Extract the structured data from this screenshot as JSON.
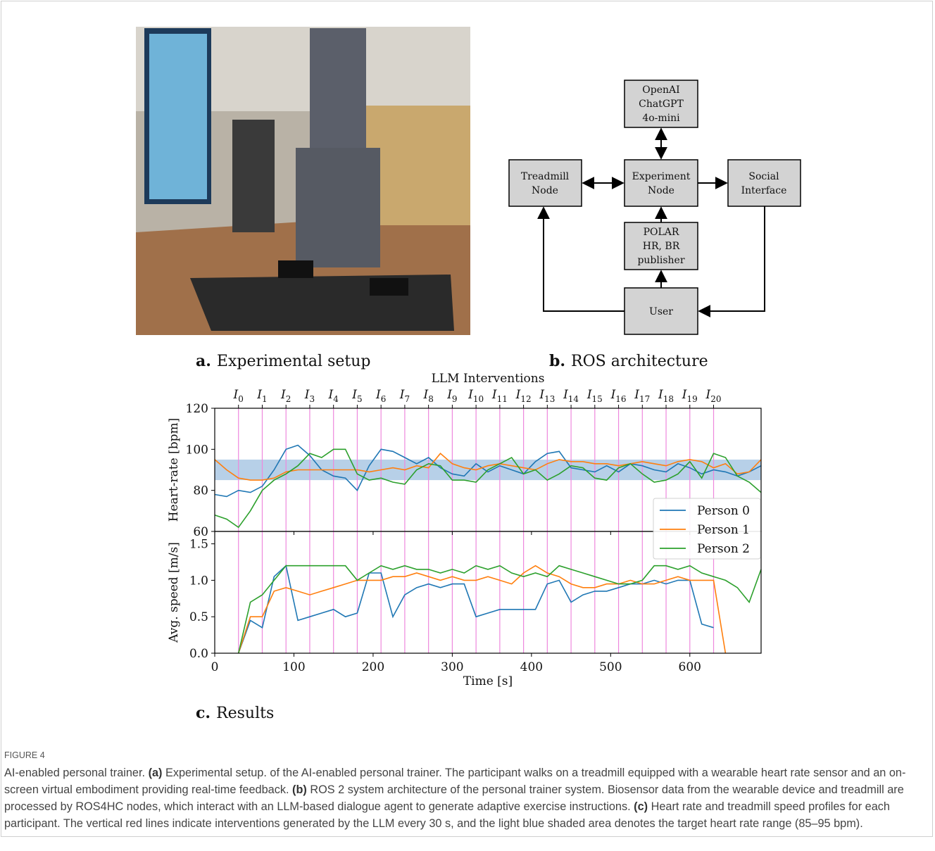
{
  "panels": [
    {
      "letter": "a.",
      "title": "Experimental setup"
    },
    {
      "letter": "b.",
      "title": "ROS architecture"
    },
    {
      "letter": "c.",
      "title": "Results"
    }
  ],
  "diagram": {
    "nodes": [
      {
        "lines": [
          "OpenAI",
          "ChatGPT",
          "4o-mini"
        ]
      },
      {
        "lines": [
          "Treadmill",
          "Node"
        ]
      },
      {
        "lines": [
          "Experiment",
          "Node"
        ]
      },
      {
        "lines": [
          "Social",
          "Interface"
        ]
      },
      {
        "lines": [
          "POLAR",
          "HR, BR",
          "publisher"
        ]
      },
      {
        "lines": [
          "User"
        ]
      }
    ]
  },
  "chart_data": [
    {
      "type": "line",
      "title": "LLM Interventions",
      "y_label": "Heart-rate [bpm]",
      "x": [
        0,
        15,
        30,
        45,
        60,
        75,
        90,
        105,
        120,
        135,
        150,
        165,
        180,
        195,
        210,
        225,
        240,
        255,
        270,
        285,
        300,
        315,
        330,
        345,
        360,
        375,
        390,
        405,
        420,
        435,
        450,
        465,
        480,
        495,
        510,
        525,
        540,
        555,
        570,
        585,
        600,
        615,
        630,
        645,
        660,
        675,
        690
      ],
      "xlim": [
        0,
        690
      ],
      "ylim": [
        60,
        120
      ],
      "yticks": [
        60,
        80,
        100,
        120
      ],
      "target_range": [
        85,
        95
      ],
      "target_color": "#aac8e4",
      "interventions": {
        "x": [
          30,
          60,
          90,
          120,
          150,
          180,
          210,
          240,
          270,
          300,
          330,
          360,
          390,
          420,
          450,
          480,
          510,
          540,
          570,
          600,
          630
        ],
        "labels": [
          "I0",
          "I1",
          "I2",
          "I3",
          "I4",
          "I5",
          "I6",
          "I7",
          "I8",
          "I9",
          "I10",
          "I11",
          "I12",
          "I13",
          "I14",
          "I15",
          "I16",
          "I17",
          "I18",
          "I19",
          "I20"
        ],
        "color": "#ee88dd"
      },
      "legend": "lower right",
      "series": [
        {
          "name": "Person 0",
          "color": "#1f77b4",
          "values": [
            78,
            77,
            80,
            79,
            82,
            90,
            100,
            102,
            97,
            90,
            87,
            86,
            80,
            92,
            100,
            99,
            96,
            93,
            96,
            91,
            88,
            87,
            93,
            89,
            92,
            90,
            88,
            94,
            98,
            99,
            91,
            90,
            89,
            92,
            89,
            93,
            92,
            90,
            89,
            93,
            91,
            88,
            90,
            89,
            87,
            89,
            92
          ]
        },
        {
          "name": "Person 1",
          "color": "#ff7f0e",
          "values": [
            95,
            90,
            86,
            85,
            85,
            86,
            89,
            90,
            90,
            90,
            90,
            90,
            90,
            89,
            90,
            91,
            90,
            92,
            91,
            98,
            93,
            91,
            90,
            92,
            93,
            92,
            91,
            90,
            93,
            95,
            94,
            94,
            93,
            93,
            92,
            93,
            94,
            93,
            92,
            94,
            95,
            94,
            91,
            93,
            88,
            89,
            95
          ]
        },
        {
          "name": "Person 2",
          "color": "#2ca02c",
          "values": [
            68,
            66,
            62,
            70,
            80,
            85,
            88,
            92,
            98,
            96,
            100,
            100,
            88,
            85,
            86,
            84,
            83,
            90,
            93,
            92,
            85,
            85,
            84,
            90,
            93,
            96,
            88,
            90,
            85,
            88,
            92,
            91,
            86,
            85,
            91,
            93,
            88,
            84,
            85,
            88,
            94,
            86,
            98,
            96,
            87,
            84,
            79
          ]
        }
      ]
    },
    {
      "type": "line",
      "y_label": "Avg. speed [m/s]",
      "x_label": "Time [s]",
      "x": [
        0,
        15,
        30,
        45,
        60,
        75,
        90,
        105,
        120,
        135,
        150,
        165,
        180,
        195,
        210,
        225,
        240,
        255,
        270,
        285,
        300,
        315,
        330,
        345,
        360,
        375,
        390,
        405,
        420,
        435,
        450,
        465,
        480,
        495,
        510,
        525,
        540,
        555,
        570,
        585,
        600,
        615,
        630,
        645,
        660,
        675,
        690
      ],
      "xlim": [
        0,
        690
      ],
      "xticks": [
        0,
        100,
        200,
        300,
        400,
        500,
        600
      ],
      "ylim": [
        0,
        1.67
      ],
      "yticks": [
        {
          "value": 0,
          "label": "0.0"
        },
        0.5,
        {
          "value": 1,
          "label": "1.0"
        },
        1.5
      ],
      "series": [
        {
          "name": "Person 0",
          "color": "#1f77b4",
          "values": [
            null,
            null,
            0,
            0.45,
            0.35,
            1.05,
            1.2,
            0.45,
            0.5,
            0.55,
            0.6,
            0.5,
            0.55,
            1.1,
            1.1,
            0.5,
            0.8,
            0.9,
            0.95,
            0.9,
            0.95,
            0.95,
            0.5,
            0.55,
            0.6,
            0.6,
            0.6,
            0.6,
            0.95,
            1.0,
            0.7,
            0.8,
            0.85,
            0.85,
            0.9,
            0.95,
            0.95,
            1.0,
            0.95,
            1.0,
            1.0,
            0.4,
            0.35,
            null,
            null,
            null,
            null
          ]
        },
        {
          "name": "Person 1",
          "color": "#ff7f0e",
          "values": [
            null,
            null,
            0,
            0.5,
            0.5,
            0.85,
            0.9,
            0.85,
            0.8,
            0.85,
            0.9,
            0.95,
            1.0,
            1.0,
            1.0,
            1.05,
            1.05,
            1.1,
            1.05,
            1.0,
            1.05,
            1.0,
            1.0,
            1.05,
            1.0,
            0.95,
            1.1,
            1.2,
            1.1,
            1.05,
            0.95,
            0.9,
            0.9,
            0.95,
            0.95,
            1.0,
            0.95,
            0.95,
            1.0,
            1.05,
            1.0,
            1.0,
            1.0,
            0,
            null,
            null,
            null
          ]
        },
        {
          "name": "Person 2",
          "color": "#2ca02c",
          "values": [
            null,
            null,
            0,
            0.7,
            0.8,
            1.0,
            1.2,
            1.2,
            1.2,
            1.2,
            1.2,
            1.2,
            1.0,
            1.1,
            1.2,
            1.15,
            1.2,
            1.15,
            1.15,
            1.1,
            1.15,
            1.1,
            1.2,
            1.15,
            1.2,
            1.1,
            1.05,
            1.1,
            1.05,
            1.2,
            1.15,
            1.1,
            1.05,
            1.0,
            0.95,
            0.95,
            1.0,
            1.2,
            1.2,
            1.15,
            1.2,
            1.1,
            1.05,
            1.0,
            0.9,
            0.7,
            1.15
          ]
        }
      ]
    }
  ],
  "figure_label": "FIGURE 4",
  "caption": [
    "AI-enabled personal trainer. ",
    "(a)",
    " Experimental setup. of the AI-enabled personal trainer. The participant walks on a treadmill equipped with a wearable heart rate sensor and an on-screen virtual embodiment providing real-time feedback. ",
    "(b)",
    " ROS 2 system architecture of the personal trainer system. Biosensor data from the wearable device and treadmill are processed by ROS4HC nodes, which interact with an LLM-based dialogue agent to generate adaptive exercise instructions. ",
    "(c)",
    " Heart rate and treadmill speed profiles for each participant. The vertical red lines indicate interventions generated by the LLM every 30 s, and the light blue shaded area denotes the target heart rate range (85–95 bpm)."
  ]
}
